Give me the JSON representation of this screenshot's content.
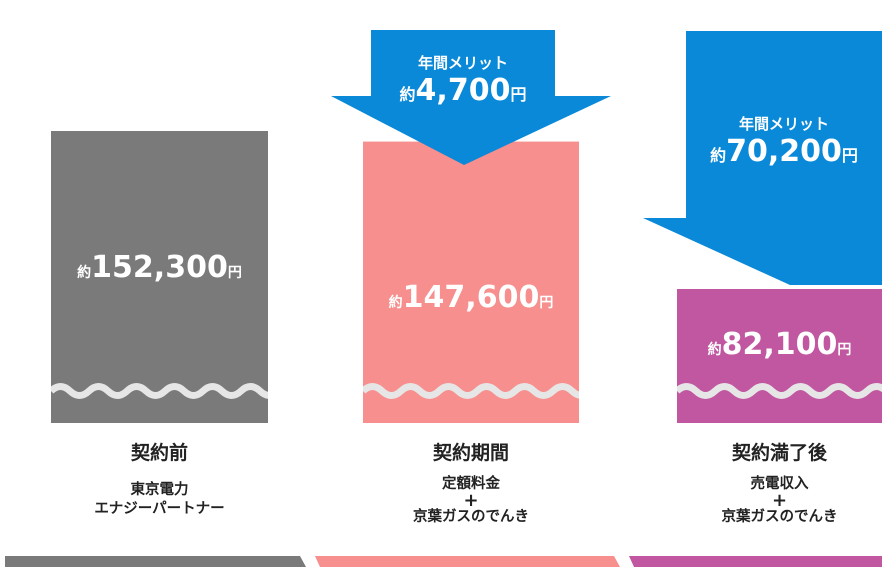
{
  "chart_data": {
    "type": "bar",
    "categories": [
      "契約前",
      "契約期間",
      "契約満了後"
    ],
    "values": [
      152300,
      147600,
      82100
    ],
    "value_labels": [
      {
        "prefix": "約",
        "number": "152,300",
        "unit": "円"
      },
      {
        "prefix": "約",
        "number": "147,600",
        "unit": "円"
      },
      {
        "prefix": "約",
        "number": "82,100",
        "unit": "円"
      }
    ],
    "descriptions": [
      {
        "line1": "東京電力",
        "plus": "",
        "line2": "エナジーパートナー"
      },
      {
        "line1": "定額料金",
        "plus": "+",
        "line2": "京葉ガスのでんき"
      },
      {
        "line1": "売電収入",
        "plus": "+",
        "line2": "京葉ガスのでんき"
      }
    ],
    "colors": [
      "#7a7a7a",
      "#f68f8d",
      "#c157a0"
    ],
    "annotations": [
      {
        "label": "年間メリット",
        "prefix": "約",
        "number": "4,700",
        "unit": "円",
        "color": "#0a89d8"
      },
      {
        "label": "年間メリット",
        "prefix": "約",
        "number": "70,200",
        "unit": "円",
        "color": "#0a89d8"
      }
    ]
  }
}
